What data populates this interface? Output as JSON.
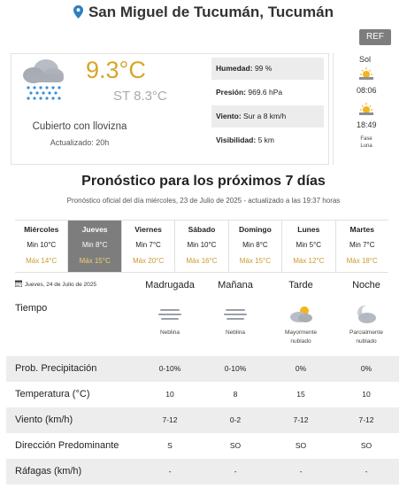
{
  "header": {
    "location": "San Miguel de Tucumán, Tucumán"
  },
  "ref_button": "REF",
  "current": {
    "temperature": "9.3°C",
    "feels_like": "ST 8.3°C",
    "condition": "Cubierto con llovizna",
    "updated": "Actualizado: 20h",
    "stats": [
      {
        "label": "Humedad:",
        "value": "99 %"
      },
      {
        "label": "Presión:",
        "value": "969.6 hPa"
      },
      {
        "label": "Viento:",
        "value": "Sur a 8 km/h"
      },
      {
        "label": "Visibilidad:",
        "value": "5 km"
      }
    ]
  },
  "sun": {
    "title": "Sol",
    "sunrise": "08:06",
    "sunset": "18:49",
    "moon_phase": "Fase Luna"
  },
  "forecast": {
    "title": "Pronóstico para los próximos 7 días",
    "subtitle": "Pronóstico oficial del día miércoles, 23 de Julio de 2025 - actualizado a las 19:37 horas",
    "days": [
      {
        "name": "Miércoles",
        "min": "Min 10°C",
        "max": "Máx 14°C"
      },
      {
        "name": "Jueves",
        "min": "Min 8°C",
        "max": "Máx 15°C"
      },
      {
        "name": "Viernes",
        "min": "Min 7°C",
        "max": "Máx 20°C"
      },
      {
        "name": "Sábado",
        "min": "Min 10°C",
        "max": "Máx 16°C"
      },
      {
        "name": "Domingo",
        "min": "Min 8°C",
        "max": "Máx 15°C"
      },
      {
        "name": "Lunes",
        "min": "Min 5°C",
        "max": "Máx 12°C"
      },
      {
        "name": "Martes",
        "min": "Min 7°C",
        "max": "Máx 18°C"
      }
    ],
    "selected_day_index": 1
  },
  "detail": {
    "date": "Jueves, 24 de Julio de 2025",
    "periods": [
      "Madrugada",
      "Mañana",
      "Tarde",
      "Noche"
    ],
    "tiempo_label": "Tiempo",
    "weather": [
      {
        "icon": "fog-icon",
        "desc": "Neblina"
      },
      {
        "icon": "fog-icon",
        "desc": "Neblina"
      },
      {
        "icon": "partly-cloudy-day-icon",
        "desc": "Mayormente nublado"
      },
      {
        "icon": "partly-cloudy-night-icon",
        "desc": "Parcialmente nublado"
      }
    ],
    "rows": [
      {
        "label": "Prob. Precipitación",
        "values": [
          "0-10%",
          "0-10%",
          "0%",
          "0%"
        ]
      },
      {
        "label": "Temperatura (°C)",
        "values": [
          "10",
          "8",
          "15",
          "10"
        ]
      },
      {
        "label": "Viento (km/h)",
        "values": [
          "7-12",
          "0-2",
          "7-12",
          "7-12"
        ]
      },
      {
        "label": "Dirección Predominante",
        "values": [
          "S",
          "SO",
          "SO",
          "SO"
        ]
      },
      {
        "label": "Ráfagas (km/h)",
        "values": [
          "-",
          "-",
          "-",
          "-"
        ]
      }
    ]
  },
  "colors": {
    "accent_temp": "#d9a52b",
    "max_temp": "#c99a2e",
    "selected_day": "#7d7d7d"
  }
}
